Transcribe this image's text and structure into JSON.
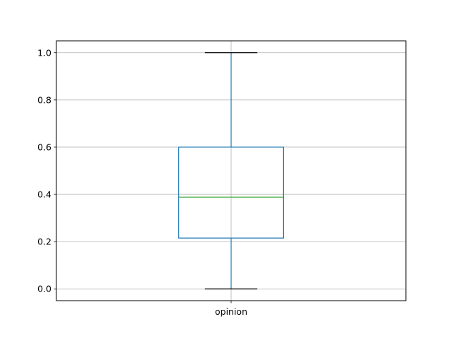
{
  "chart_data": {
    "type": "box",
    "categories": [
      "opinion"
    ],
    "series": [
      {
        "whisker_low": 0.0,
        "q1": 0.215,
        "median": 0.388,
        "q3": 0.6,
        "whisker_high": 1.0
      }
    ],
    "ylim": [
      -0.05,
      1.05
    ],
    "yticks": [
      0.0,
      0.2,
      0.4,
      0.6,
      0.8,
      1.0
    ],
    "ytick_labels": [
      "0.0",
      "0.2",
      "0.4",
      "0.6",
      "0.8",
      "1.0"
    ],
    "grid": true,
    "colors": {
      "box": "#1f77b4",
      "median": "#2ca02c",
      "whisker_cap": "#000000",
      "grid": "#b0b0b0"
    }
  }
}
